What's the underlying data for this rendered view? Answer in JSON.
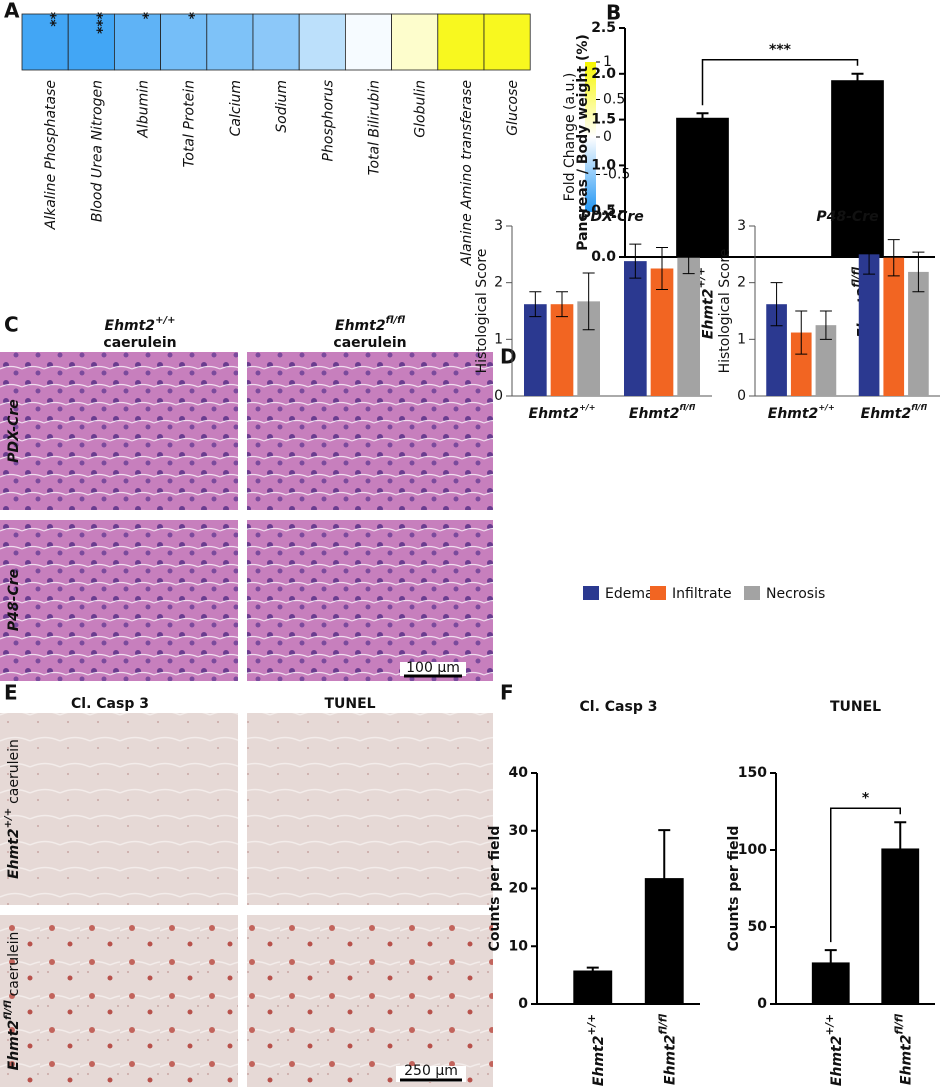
{
  "figure": {
    "panel_labels": [
      "A",
      "B",
      "C",
      "D",
      "E",
      "F"
    ],
    "he_columns": [
      {
        "gene": "Ehmt2",
        "sup": "+/+",
        "treatment": "caerulein"
      },
      {
        "gene": "Ehmt2",
        "sup": "fl/fl",
        "treatment": "caerulein"
      }
    ],
    "he_rows": [
      "PDX-Cre",
      "P48-Cre"
    ],
    "he_scale": "100 µm",
    "ihc_columns": [
      "Cl. Casp 3",
      "TUNEL"
    ],
    "ihc_rows": [
      {
        "gene": "Ehmt2",
        "sup": "+/+",
        "treatment": "caerulein"
      },
      {
        "gene": "Ehmt2",
        "sup": "fl/fl",
        "treatment": "caerulein"
      }
    ],
    "ihc_scale": "250 µm"
  },
  "chart_data": [
    {
      "type": "heatmap",
      "categories": [
        "Alkaline Phosphatase",
        "Blood Urea Nitrogen",
        "Albumin",
        "Total Protein",
        "Calcium",
        "Sodium",
        "Phosphorus",
        "Total Bilirubin",
        "Globulin",
        "Alanine Amino transferase",
        "Glucose"
      ],
      "values": [
        -0.85,
        -0.85,
        -0.72,
        -0.62,
        -0.58,
        -0.52,
        -0.3,
        -0.04,
        0.2,
        0.88,
        0.88
      ],
      "significance": [
        "**",
        "***",
        "*",
        "*",
        null,
        null,
        null,
        null,
        null,
        null,
        null
      ],
      "colorbar_label": "Fold Change (a.u.)",
      "clim": [
        -1,
        1
      ],
      "cticks": [
        1,
        0.5,
        0,
        -0.5,
        -1
      ],
      "colormap": [
        "#2196f3",
        "#ffffff",
        "#f7f700"
      ]
    },
    {
      "type": "bar",
      "ylabel": "Pancreas / Body weight (%)",
      "categories": [
        "Ehmt2",
        "Ehmt2"
      ],
      "category_superscripts": [
        "+/+",
        "fl/fl"
      ],
      "values": [
        1.52,
        1.93
      ],
      "errors": [
        0.05,
        0.07
      ],
      "color": "#000000",
      "significance": "***",
      "ylim": [
        0,
        2.5
      ],
      "yticks": [
        {
          "value": 0,
          "label": "0.0"
        },
        0.5,
        {
          "value": 1,
          "label": "1.0"
        },
        1.5,
        {
          "value": 2,
          "label": "2.0"
        },
        2.5
      ]
    },
    {
      "type": "grouped-bar",
      "ylabel": "Histological Score",
      "categories": [
        "Ehmt2",
        "Ehmt2"
      ],
      "category_superscripts": [
        "+/+",
        "fl/fl"
      ],
      "ylim": [
        0,
        3
      ],
      "yticks": [
        0,
        1,
        2,
        3
      ],
      "legend": "bottom",
      "series": [
        {
          "name": "Edema",
          "color": "#2b3990"
        },
        {
          "name": "Infiltrate",
          "color": "#f26522"
        },
        {
          "name": "Necrosis",
          "color": "#a3a3a3"
        }
      ],
      "panels": [
        {
          "title": "PDX-Cre",
          "series": [
            {
              "values": [
                1.62,
                2.38
              ],
              "errors": [
                0.22,
                0.3
              ]
            },
            {
              "values": [
                1.62,
                2.25
              ],
              "errors": [
                0.22,
                0.37
              ]
            },
            {
              "values": [
                1.67,
                2.44
              ],
              "errors": [
                0.5,
                0.28
              ]
            }
          ]
        },
        {
          "title": "P48-Cre",
          "series": [
            {
              "values": [
                1.62,
                2.5
              ],
              "errors": [
                0.38,
                0.35
              ]
            },
            {
              "values": [
                1.12,
                2.44
              ],
              "errors": [
                0.38,
                0.32
              ]
            },
            {
              "values": [
                1.25,
                2.19
              ],
              "errors": [
                0.25,
                0.35
              ]
            }
          ]
        }
      ]
    },
    {
      "type": "bar",
      "title": "Cl. Casp 3",
      "ylabel": "Counts per field",
      "categories": [
        "Ehmt2",
        "Ehmt2"
      ],
      "category_superscripts": [
        "+/+",
        "fl/fl"
      ],
      "values": [
        5.8,
        21.8
      ],
      "errors": [
        0.5,
        8.3
      ],
      "color": "#000000",
      "ylim": [
        0,
        40
      ],
      "yticks": [
        0,
        10,
        20,
        30,
        40
      ]
    },
    {
      "type": "bar",
      "title": "TUNEL",
      "ylabel": "Counts per field",
      "categories": [
        "Ehmt2",
        "Ehmt2"
      ],
      "category_superscripts": [
        "+/+",
        "fl/fl"
      ],
      "values": [
        27,
        101
      ],
      "errors": [
        8,
        17
      ],
      "color": "#000000",
      "significance": "*",
      "ylim": [
        0,
        150
      ],
      "yticks": [
        0,
        50,
        100,
        150
      ]
    }
  ]
}
